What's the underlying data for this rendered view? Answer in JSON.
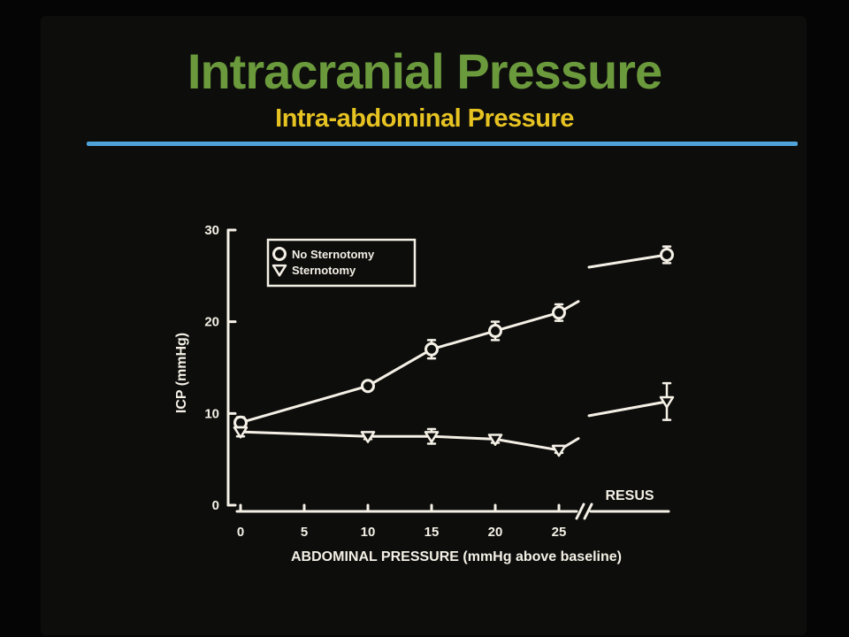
{
  "slide": {
    "title": "Intracranial Pressure",
    "subtitle": "Intra-abdominal Pressure"
  },
  "colors": {
    "title": "#6b9a3c",
    "subtitle": "#e7c322",
    "rule": "#4fa3d8",
    "ink": "#f4f0e6"
  },
  "chart_data": {
    "type": "line",
    "xlabel": "ABDOMINAL PRESSURE (mmHg above baseline)",
    "ylabel": "ICP (mmHg)",
    "ylim": [
      0,
      30
    ],
    "xlim": [
      0,
      25
    ],
    "x_ticks": [
      "0",
      "5",
      "10",
      "15",
      "20",
      "25"
    ],
    "y_ticks": [
      "0",
      "10",
      "20",
      "30"
    ],
    "break_label": "RESUS",
    "legend_position": "top-left",
    "grid": false,
    "series": [
      {
        "name": "No Sternotomy",
        "marker": "circle",
        "x": [
          0,
          10,
          15,
          20,
          25
        ],
        "y": [
          9,
          13,
          17,
          19,
          21
        ],
        "err": [
          0.6,
          0.5,
          1.0,
          1.0,
          0.9
        ],
        "resus": {
          "y": 27.3,
          "err": 0.9
        }
      },
      {
        "name": "Sternotomy",
        "marker": "triangle",
        "x": [
          0,
          10,
          15,
          20,
          25
        ],
        "y": [
          8,
          7.5,
          7.5,
          7.2,
          6
        ],
        "err": [
          0.5,
          0.3,
          0.8,
          0.4,
          0.3
        ],
        "resus": {
          "y": 11.3,
          "err": 2.0
        }
      }
    ]
  }
}
